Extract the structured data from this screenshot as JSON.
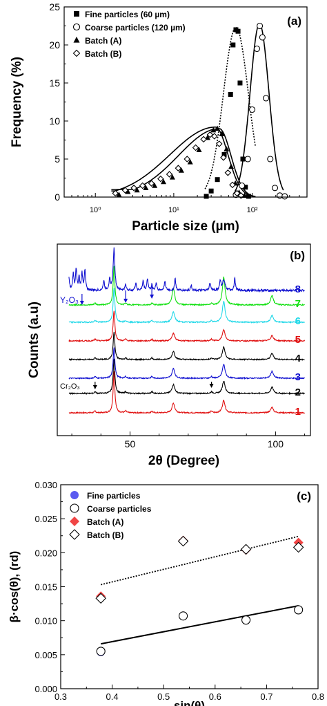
{
  "chart_data": [
    {
      "panel_label": "(a)",
      "type": "scatter",
      "xlabel": "Particle size (µm)",
      "ylabel": "Frequency (%)",
      "x_scale": "log",
      "xlim": [
        0.4,
        500
      ],
      "ylim": [
        0,
        25
      ],
      "x_tick_labels": [
        "10⁰",
        "10¹",
        "10²"
      ],
      "y_tick_labels": [
        "0",
        "5",
        "10",
        "15",
        "20",
        "25"
      ],
      "legend_position": "top-left",
      "series": [
        {
          "name": "Fine particles (60 µm)",
          "marker": "filled-square",
          "x": [
            26,
            30,
            36,
            44,
            53,
            57,
            62,
            66,
            70,
            76,
            82,
            90
          ],
          "y": [
            0.1,
            0.8,
            2.3,
            5.6,
            13.5,
            20.0,
            22.0,
            21.8,
            15.0,
            5.0,
            1.3,
            0.1
          ]
        },
        {
          "name": "Coarse particles (120 µm)",
          "marker": "open-circle",
          "x": [
            62,
            74,
            88,
            100,
            115,
            125,
            135,
            150,
            170,
            195,
            225,
            260
          ],
          "y": [
            0.3,
            1.5,
            5.0,
            11.5,
            19.5,
            22.5,
            21.0,
            13.0,
            5.0,
            1.2,
            0.2,
            0.1
          ]
        },
        {
          "name": "Batch (A)",
          "marker": "filled-triangle",
          "x": [
            2,
            2.6,
            3.4,
            4.4,
            5.7,
            7.4,
            9.6,
            12.5,
            16.2,
            21,
            27,
            32,
            36,
            41,
            47,
            54,
            61,
            68,
            80
          ],
          "y": [
            0.3,
            0.7,
            0.9,
            1.2,
            1.5,
            2.0,
            2.6,
            3.5,
            4.6,
            6.2,
            7.8,
            8.8,
            9.0,
            8.3,
            6.3,
            4.0,
            1.8,
            0.6,
            0.2
          ]
        },
        {
          "name": "Batch (B)",
          "marker": "open-diamond",
          "x": [
            1.8,
            2.4,
            3.1,
            4.0,
            5.2,
            6.8,
            8.8,
            11.4,
            14.8,
            19,
            24,
            29,
            33,
            38,
            43,
            49,
            56,
            64,
            72
          ],
          "y": [
            0.5,
            0.9,
            1.2,
            1.5,
            1.8,
            2.4,
            3.0,
            3.8,
            5.0,
            6.5,
            7.6,
            8.2,
            8.0,
            7.0,
            5.2,
            3.2,
            1.6,
            0.5,
            0.2
          ]
        }
      ],
      "fit_curves": [
        {
          "style": "dotted",
          "peak_x": 62,
          "peak_y": 22.3,
          "log_sigma": 0.16
        },
        {
          "style": "solid",
          "peak_x": 124,
          "peak_y": 22.8,
          "log_sigma": 0.12
        },
        {
          "style": "solid",
          "lognormal_mean_x": 34,
          "peak_y": 9.2,
          "log_sigma_left": 0.58,
          "log_sigma_right": 0.16,
          "base_y": 0.8,
          "x_start": 1.6
        },
        {
          "style": "solid",
          "lognormal_mean_x": 38,
          "peak_y": 9.0,
          "log_sigma_left": 0.52,
          "log_sigma_right": 0.15,
          "base_y": 1.0,
          "x_start": 1.6
        }
      ]
    },
    {
      "panel_label": "(b)",
      "type": "line",
      "xlabel": "2θ (Degree)",
      "ylabel": "Counts (a.u)",
      "xlim": [
        25,
        112
      ],
      "x_tick_labels": [
        "50",
        "100"
      ],
      "main_peaks_2theta": [
        44.5,
        64.9,
        82.2,
        98.8
      ],
      "series": [
        {
          "name": "1",
          "color": "#e01010",
          "peak_heights": [
            60,
            14,
            18,
            8
          ],
          "noise": 1
        },
        {
          "name": "2",
          "color": "#000000",
          "peak_heights": [
            50,
            13,
            18,
            9
          ],
          "noise": 1
        },
        {
          "name": "3",
          "color": "#1010d0",
          "peak_heights": [
            45,
            14,
            20,
            10
          ],
          "noise": 1
        },
        {
          "name": "4",
          "color": "#000000",
          "peak_heights": [
            40,
            12,
            18,
            9
          ],
          "noise": 1
        },
        {
          "name": "5",
          "color": "#e01010",
          "peak_heights": [
            44,
            11,
            16,
            8
          ],
          "noise": 1
        },
        {
          "name": "6",
          "color": "#20d8e8",
          "peak_heights": [
            50,
            15,
            30,
            10
          ],
          "noise": 1
        },
        {
          "name": "7",
          "color": "#10e010",
          "peak_heights": [
            56,
            24,
            40,
            14
          ],
          "noise": 1
        },
        {
          "name": "8",
          "color": "#1010d0",
          "peak_heights": [
            60,
            0,
            14,
            0
          ],
          "noise": 2
        }
      ],
      "series8_extra_peaks_2theta": [
        29,
        30.5,
        31.5,
        32.5,
        33.5,
        34.5,
        41,
        43,
        48.5,
        52,
        54.5,
        56,
        57.5,
        59,
        62,
        65.5,
        71,
        77.5,
        81,
        86
      ],
      "annotations": [
        {
          "text": "Y₂O₃",
          "position": "left-upper"
        },
        {
          "text": "Cr₂O₃",
          "position": "left-lower"
        }
      ]
    },
    {
      "panel_label": "(c)",
      "type": "scatter",
      "xlabel": "sin(θ)",
      "ylabel": "β·cos(θ), (rd)",
      "xlim": [
        0.3,
        0.8
      ],
      "ylim": [
        0.0,
        0.03
      ],
      "x_tick_labels": [
        "0.3",
        "0.4",
        "0.5",
        "0.6",
        "0.7",
        "0.8"
      ],
      "y_tick_labels": [
        "0.000",
        "0.005",
        "0.010",
        "0.015",
        "0.020",
        "0.025",
        "0.030"
      ],
      "legend_position": "top-left",
      "series": [
        {
          "name": "Fine particles",
          "marker": "filled-circle",
          "color": "#5b5bf0",
          "x": [
            0.378,
            0.538,
            0.66,
            0.762
          ],
          "y": [
            0.0054,
            0.0107,
            0.0101,
            0.0116
          ]
        },
        {
          "name": "Coarse particles",
          "marker": "open-circle",
          "x": [
            0.378,
            0.538,
            0.66,
            0.762
          ],
          "y": [
            0.0055,
            0.0107,
            0.0101,
            0.0116
          ]
        },
        {
          "name": "Batch (A)",
          "marker": "filled-diamond",
          "color": "#f04545",
          "x": [
            0.378,
            0.538,
            0.66,
            0.762
          ],
          "y": [
            0.0136,
            0.0218,
            0.0204,
            0.0215
          ]
        },
        {
          "name": "Batch (B)",
          "marker": "open-diamond",
          "x": [
            0.378,
            0.538,
            0.66,
            0.762
          ],
          "y": [
            0.0133,
            0.0217,
            0.0205,
            0.0208
          ]
        }
      ],
      "fit_lines": [
        {
          "style": "dotted",
          "x": [
            0.378,
            0.762
          ],
          "y": [
            0.0153,
            0.0224
          ]
        },
        {
          "style": "solid",
          "x": [
            0.378,
            0.762
          ],
          "y": [
            0.0066,
            0.0122
          ]
        }
      ]
    }
  ]
}
